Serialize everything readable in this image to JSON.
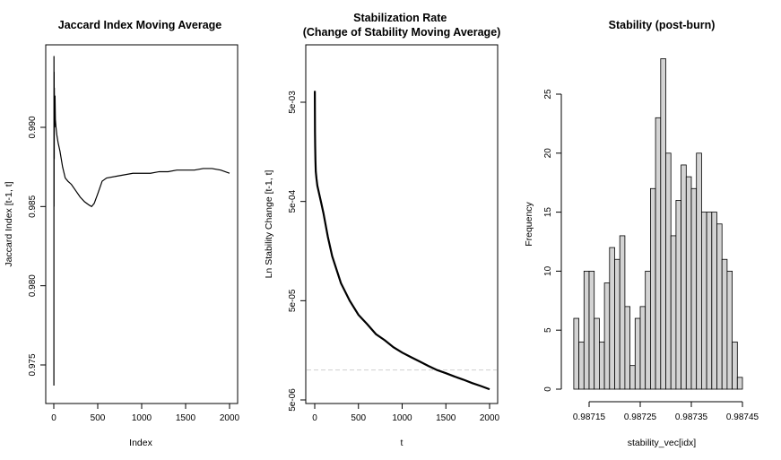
{
  "chart_data": [
    {
      "type": "line",
      "title": "Jaccard Index Moving Average",
      "xlabel": "Index",
      "ylabel": "Jaccard Index [t-1, t]",
      "xlim": [
        0,
        2000
      ],
      "ylim": [
        0.9735,
        0.9948
      ],
      "x_ticks": [
        0,
        500,
        1000,
        1500,
        2000
      ],
      "x_tick_labels": [
        "0",
        "500",
        "1000",
        "1500",
        "2000"
      ],
      "y_ticks": [
        0.975,
        0.98,
        0.985,
        0.99
      ],
      "y_tick_labels": [
        "0.975",
        "0.980",
        "0.985",
        "0.990"
      ],
      "grid": false,
      "series": [
        {
          "x": [
            1,
            2,
            3,
            4,
            5,
            6,
            8,
            10,
            14,
            18,
            25,
            35,
            50,
            70,
            100,
            130,
            160,
            200,
            250,
            300,
            350,
            400,
            430,
            460,
            500,
            550,
            600,
            700,
            800,
            900,
            1000,
            1100,
            1200,
            1300,
            1400,
            1500,
            1600,
            1700,
            1800,
            1900,
            2000
          ],
          "y": [
            0.9737,
            0.9945,
            0.985,
            0.9935,
            0.988,
            0.9925,
            0.9915,
            0.99,
            0.992,
            0.9905,
            0.99,
            0.9895,
            0.989,
            0.9885,
            0.9875,
            0.9868,
            0.9866,
            0.9864,
            0.986,
            0.9856,
            0.9853,
            0.9851,
            0.985,
            0.9852,
            0.9858,
            0.9866,
            0.9868,
            0.9869,
            0.987,
            0.9871,
            0.9871,
            0.9871,
            0.9872,
            0.9872,
            0.9873,
            0.9873,
            0.9873,
            0.9874,
            0.9874,
            0.9873,
            0.9871
          ]
        }
      ]
    },
    {
      "type": "line",
      "title": "Stabilization Rate\n(Change of Stability Moving Average)",
      "xlabel": "t",
      "ylabel": "Ln Stability Change [t-1, t]",
      "xlim": [
        0,
        2000
      ],
      "ylog": true,
      "ylim": [
        4.5e-06,
        0.0085
      ],
      "x_ticks": [
        0,
        500,
        1000,
        1500,
        2000
      ],
      "x_tick_labels": [
        "0",
        "500",
        "1000",
        "1500",
        "2000"
      ],
      "y_ticks": [
        5e-06,
        5e-05,
        0.0005,
        0.005
      ],
      "y_tick_labels": [
        "5e-06",
        "5e-05",
        "5e-04",
        "5e-03"
      ],
      "reference_line_y": 1e-05,
      "grid": false,
      "series": [
        {
          "x": [
            1,
            2,
            3,
            5,
            8,
            12,
            20,
            30,
            50,
            75,
            100,
            150,
            200,
            300,
            400,
            500,
            600,
            700,
            800,
            900,
            1000,
            1100,
            1200,
            1300,
            1400,
            1500,
            1600,
            1700,
            1800,
            1900,
            2000
          ],
          "y": [
            0.0065,
            0.004,
            0.0025,
            0.0018,
            0.0013,
            0.001,
            0.00085,
            0.00072,
            0.0006,
            0.00048,
            0.00038,
            0.00022,
            0.00014,
            7.5e-05,
            5e-05,
            3.6e-05,
            2.9e-05,
            2.3e-05,
            2e-05,
            1.7e-05,
            1.5e-05,
            1.35e-05,
            1.22e-05,
            1.1e-05,
            1e-05,
            9.3e-06,
            8.6e-06,
            8e-06,
            7.4e-06,
            6.9e-06,
            6.4e-06
          ]
        }
      ]
    },
    {
      "type": "bar",
      "title": "Stability (post-burn)",
      "xlabel": "stability_vec[idx]",
      "ylabel": "Frequency",
      "bin_start": 0.98712,
      "bin_width": 1e-05,
      "values": [
        6,
        4,
        10,
        10,
        6,
        4,
        9,
        12,
        11,
        13,
        7,
        2,
        6,
        7,
        10,
        17,
        23,
        28,
        20,
        13,
        16,
        19,
        18,
        17,
        20,
        15,
        15,
        15,
        14,
        11,
        10,
        4,
        1
      ],
      "xlim": [
        0.9871,
        0.98748
      ],
      "ylim": [
        0,
        28.5
      ],
      "x_ticks": [
        0.98715,
        0.98725,
        0.98735,
        0.98745
      ],
      "x_tick_labels": [
        "0.98715",
        "0.98725",
        "0.98735",
        "0.98745"
      ],
      "y_ticks": [
        0,
        5,
        10,
        15,
        20,
        25
      ],
      "y_tick_labels": [
        "0",
        "5",
        "10",
        "15",
        "20",
        "25"
      ],
      "bar_color": "#d3d3d3",
      "grid": false
    }
  ]
}
